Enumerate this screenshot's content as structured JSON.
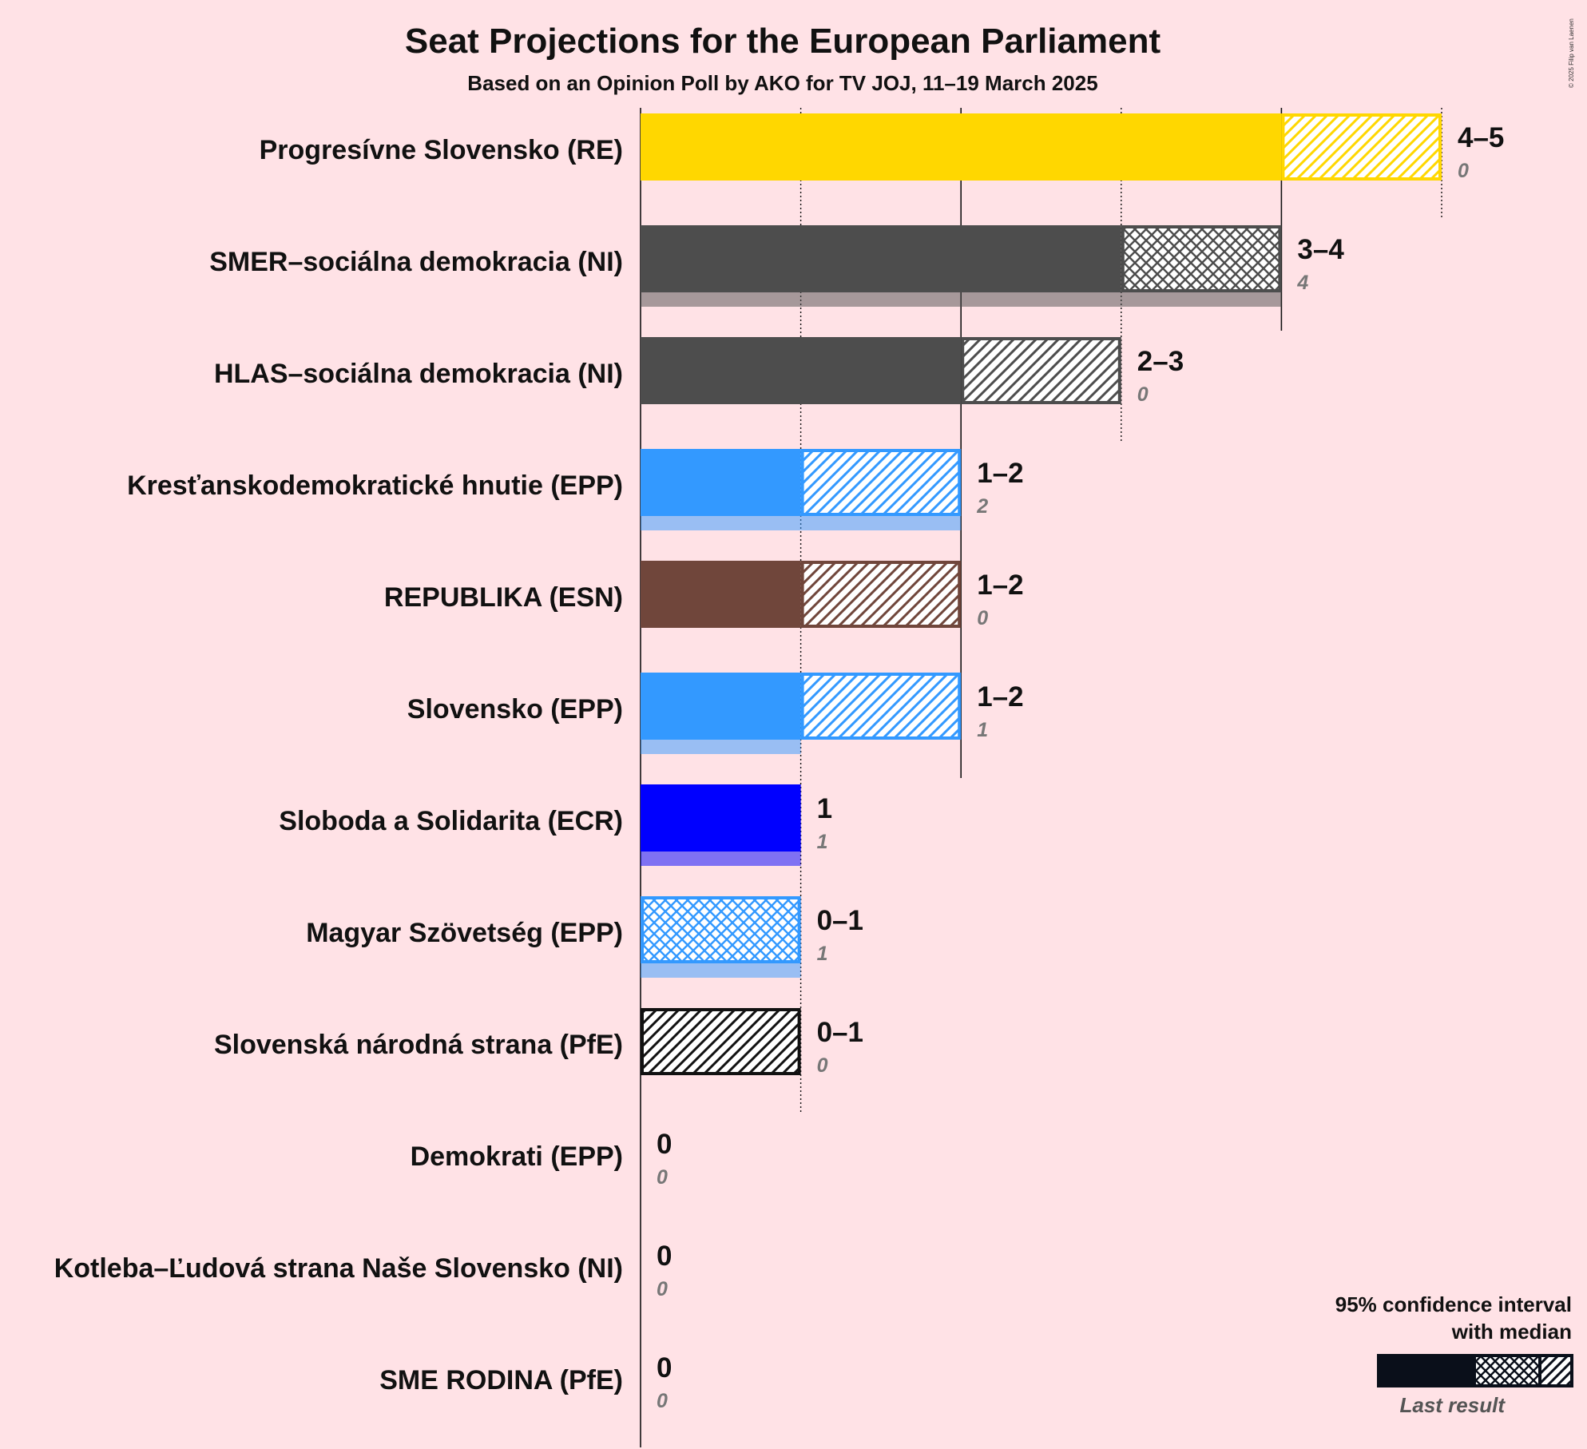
{
  "title": "Seat Projections for the European Parliament",
  "subtitle": "Based on an Opinion Poll by AKO for TV JOJ, 11–19 March 2025",
  "copyright": "© 2025 Filip van Laenen",
  "legend": {
    "line1": "95% confidence interval",
    "line2": "with median",
    "last_result": "Last result"
  },
  "chart_data": {
    "type": "bar",
    "orientation": "horizontal",
    "title": "Seat Projections for the European Parliament",
    "subtitle": "Based on an Opinion Poll by AKO for TV JOJ, 11–19 March 2025",
    "xlim": [
      0,
      5
    ],
    "grid": "vertical lines at each seat",
    "categories": [
      "Progresívne Slovensko (RE)",
      "SMER–sociálna demokracia (NI)",
      "HLAS–sociálna demokracia (NI)",
      "Kresťanskodemokratické hnutie (EPP)",
      "REPUBLIKA (ESN)",
      "Slovensko (EPP)",
      "Sloboda a Solidarita (ECR)",
      "Magyar Szövetség (EPP)",
      "Slovenská národná strana (PfE)",
      "Demokrati (EPP)",
      "Kotleba–Ľudová strana Naše Slovensko (NI)",
      "SME RODINA (PfE)"
    ],
    "parties": [
      {
        "name": "Progresívne Slovensko (RE)",
        "low": 4,
        "median": 4,
        "high": 5,
        "last": 0,
        "range_label": "4–5",
        "last_label": "0",
        "color": "#FFD700",
        "upper_pattern": "diag"
      },
      {
        "name": "SMER–sociálna demokracia (NI)",
        "low": 3,
        "median": 4,
        "high": 4,
        "last": 4,
        "range_label": "3–4",
        "last_label": "4",
        "color": "#4D4D4D",
        "upper_pattern": "cross"
      },
      {
        "name": "HLAS–sociálna demokracia (NI)",
        "low": 2,
        "median": 2,
        "high": 3,
        "last": 0,
        "range_label": "2–3",
        "last_label": "0",
        "color": "#4D4D4D",
        "upper_pattern": "diag"
      },
      {
        "name": "Kresťanskodemokratické hnutie (EPP)",
        "low": 1,
        "median": 1,
        "high": 2,
        "last": 2,
        "range_label": "1–2",
        "last_label": "2",
        "color": "#3399FF",
        "upper_pattern": "diag"
      },
      {
        "name": "REPUBLIKA (ESN)",
        "low": 1,
        "median": 1,
        "high": 2,
        "last": 0,
        "range_label": "1–2",
        "last_label": "0",
        "color": "#70463B",
        "upper_pattern": "diag"
      },
      {
        "name": "Slovensko (EPP)",
        "low": 1,
        "median": 1,
        "high": 2,
        "last": 1,
        "range_label": "1–2",
        "last_label": "1",
        "color": "#3399FF",
        "upper_pattern": "diag"
      },
      {
        "name": "Sloboda a Solidarita (ECR)",
        "low": 1,
        "median": 1,
        "high": 1,
        "last": 1,
        "range_label": "1",
        "last_label": "1",
        "color": "#0000FF",
        "upper_pattern": "none"
      },
      {
        "name": "Magyar Szövetség (EPP)",
        "low": 0,
        "median": 1,
        "high": 1,
        "last": 1,
        "range_label": "0–1",
        "last_label": "1",
        "color": "#3399FF",
        "upper_pattern": "cross"
      },
      {
        "name": "Slovenská národná strana (PfE)",
        "low": 0,
        "median": 0,
        "high": 1,
        "last": 0,
        "range_label": "0–1",
        "last_label": "0",
        "color": "#111111",
        "upper_pattern": "diag"
      },
      {
        "name": "Demokrati (EPP)",
        "low": 0,
        "median": 0,
        "high": 0,
        "last": 0,
        "range_label": "0",
        "last_label": "0",
        "color": "#3399FF",
        "upper_pattern": "none"
      },
      {
        "name": "Kotleba–Ľudová strana Naše Slovensko (NI)",
        "low": 0,
        "median": 0,
        "high": 0,
        "last": 0,
        "range_label": "0",
        "last_label": "0",
        "color": "#4D4D4D",
        "upper_pattern": "none"
      },
      {
        "name": "SME RODINA (PfE)",
        "low": 0,
        "median": 0,
        "high": 0,
        "last": 0,
        "range_label": "0",
        "last_label": "0",
        "color": "#111111",
        "upper_pattern": "none"
      }
    ]
  }
}
